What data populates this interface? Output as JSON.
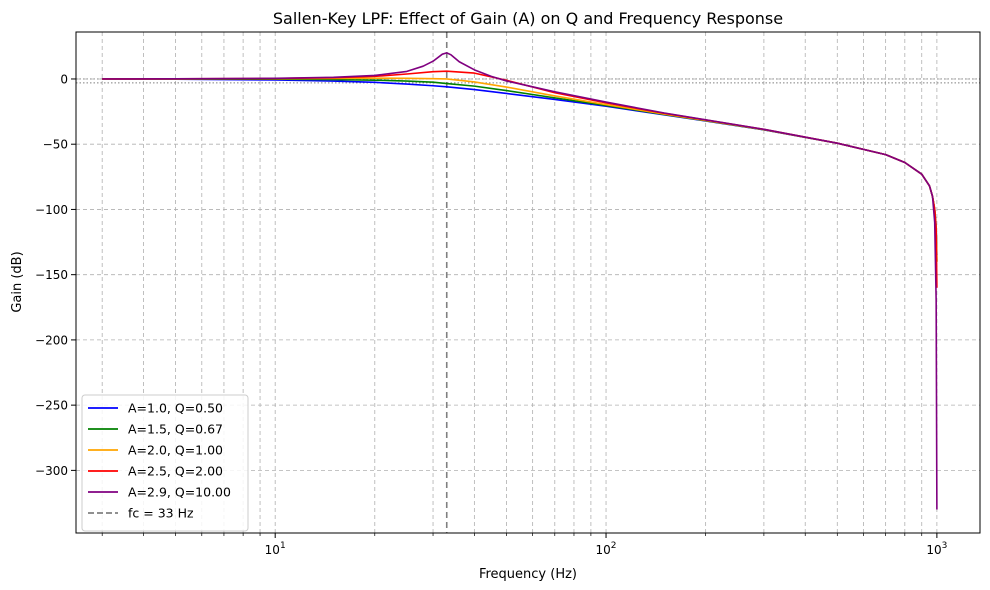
{
  "chart_data": {
    "type": "line",
    "title": "Sallen-Key LPF: Effect of Gain (A) on Q and Frequency Response",
    "xlabel": "Frequency (Hz)",
    "ylabel": "Gain (dB)",
    "xscale": "log",
    "xlim": [
      2.5,
      1350
    ],
    "ylim": [
      -348,
      36
    ],
    "xticks": [
      {
        "value": 10,
        "base": "10",
        "exp": "1"
      },
      {
        "value": 100,
        "base": "10",
        "exp": "2"
      },
      {
        "value": 1000,
        "base": "10",
        "exp": "3"
      }
    ],
    "yticks": [
      0,
      -50,
      -100,
      -150,
      -200,
      -250,
      -300
    ],
    "ytick_labels": [
      "0",
      "−50",
      "−100",
      "−150",
      "−200",
      "−250",
      "−300"
    ],
    "grid": true,
    "legend_position": "lower left",
    "reference_lines": [
      {
        "orientation": "vertical",
        "x": 33,
        "style": "dashed",
        "color": "#808080",
        "label": "fc = 33 Hz"
      },
      {
        "orientation": "horizontal",
        "y": 0,
        "style": "dotted",
        "color": "#808080"
      },
      {
        "orientation": "horizontal",
        "y": -3,
        "style": "dotted",
        "color": "#808080"
      }
    ],
    "series": [
      {
        "name": "A=1.0, Q=0.50",
        "color": "#0000ff",
        "x": [
          3,
          5,
          10,
          15,
          20,
          25,
          30,
          33,
          40,
          50,
          70,
          100,
          150,
          200,
          300,
          500,
          700,
          800,
          900,
          950,
          970,
          985,
          995,
          1000
        ],
        "y": [
          0,
          -0.2,
          -0.8,
          -1.6,
          -2.6,
          -3.9,
          -5.2,
          -6.0,
          -8.1,
          -11.1,
          -15.7,
          -20.9,
          -27.5,
          -32.2,
          -39.0,
          -49.2,
          -58.0,
          -64.0,
          -73.0,
          -82.0,
          -90.0,
          -100.0,
          -115.0,
          -135.0
        ]
      },
      {
        "name": "A=1.5, Q=0.67",
        "color": "#008000",
        "x": [
          3,
          5,
          10,
          15,
          20,
          25,
          30,
          33,
          40,
          50,
          70,
          100,
          150,
          200,
          300,
          500,
          700,
          800,
          900,
          950,
          970,
          985,
          995,
          1000
        ],
        "y": [
          0,
          -0.05,
          -0.2,
          -0.5,
          -0.9,
          -1.6,
          -2.5,
          -3.5,
          -5.5,
          -8.9,
          -14.5,
          -20.3,
          -27.2,
          -32.0,
          -38.9,
          -49.2,
          -58.0,
          -64.0,
          -73.0,
          -82.0,
          -90.0,
          -100.0,
          -115.0,
          -140.0
        ]
      },
      {
        "name": "A=2.0, Q=1.00",
        "color": "#ffa500",
        "x": [
          3,
          5,
          10,
          15,
          20,
          25,
          30,
          33,
          40,
          50,
          70,
          100,
          150,
          200,
          300,
          500,
          700,
          800,
          900,
          950,
          970,
          985,
          995,
          1000
        ],
        "y": [
          0,
          0.05,
          0.2,
          0.4,
          0.6,
          0.5,
          0.2,
          0,
          -2.3,
          -6.2,
          -13.0,
          -19.6,
          -26.9,
          -31.8,
          -38.8,
          -49.2,
          -58.0,
          -64.0,
          -73.0,
          -82.0,
          -90.0,
          -100.0,
          -115.0,
          -140.0
        ]
      },
      {
        "name": "A=2.5, Q=2.00",
        "color": "#ff0000",
        "x": [
          3,
          5,
          10,
          15,
          20,
          25,
          30,
          33,
          40,
          50,
          70,
          100,
          150,
          200,
          300,
          500,
          700,
          800,
          900,
          950,
          970,
          985,
          995,
          1000
        ],
        "y": [
          0,
          0.1,
          0.4,
          1.0,
          2.0,
          3.8,
          5.6,
          6.0,
          4.5,
          -1.0,
          -10.5,
          -18.3,
          -26.3,
          -31.4,
          -38.6,
          -49.2,
          -58.0,
          -64.0,
          -73.0,
          -82.0,
          -90.0,
          -100.0,
          -115.0,
          -160.0
        ]
      },
      {
        "name": "A=2.9, Q=10.00",
        "color": "#800080",
        "x": [
          3,
          5,
          10,
          15,
          20,
          25,
          28,
          30,
          32,
          33,
          34,
          36,
          40,
          45,
          50,
          60,
          70,
          100,
          150,
          200,
          300,
          500,
          700,
          800,
          900,
          950,
          970,
          985,
          995,
          1000
        ],
        "y": [
          0,
          0.1,
          0.5,
          1.3,
          2.7,
          5.8,
          9.8,
          13.6,
          19.0,
          20.0,
          18.5,
          13.2,
          7.0,
          2.0,
          -1.5,
          -6.0,
          -9.8,
          -17.7,
          -26.1,
          -31.3,
          -38.6,
          -49.2,
          -58.0,
          -64.0,
          -73.0,
          -82.0,
          -90.0,
          -110.0,
          -170.0,
          -330.0
        ]
      }
    ]
  }
}
